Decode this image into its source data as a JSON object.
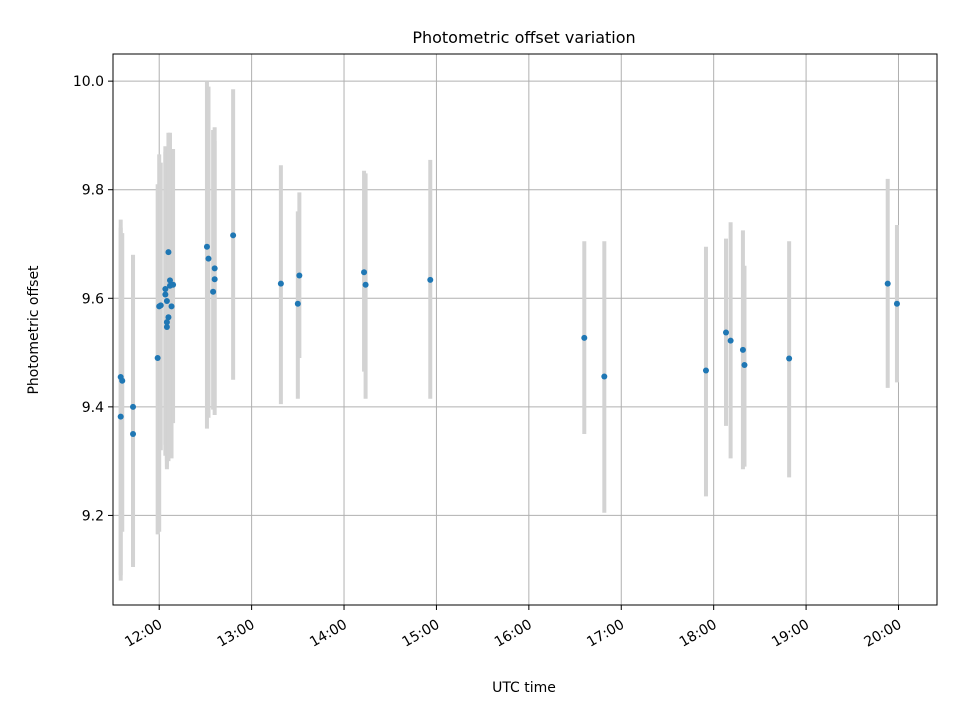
{
  "chart_data": {
    "type": "scatter",
    "title": "Photometric offset variation",
    "xlabel": "UTC time",
    "ylabel": "Photometric offset",
    "x_ticks": [
      "12:00",
      "13:00",
      "14:00",
      "15:00",
      "16:00",
      "17:00",
      "18:00",
      "19:00",
      "20:00"
    ],
    "y_ticks": [
      "9.2",
      "9.4",
      "9.6",
      "9.8",
      "10.0"
    ],
    "y_tick_values": [
      9.2,
      9.4,
      9.6,
      9.8,
      10.0
    ],
    "xlim": [
      "11:30",
      "20:25"
    ],
    "ylim": [
      9.035,
      10.05
    ],
    "grid": true,
    "colors": {
      "marker": "#1f77b4",
      "errorbar": "#d3d3d3",
      "grid": "#b0b0b0"
    },
    "points": [
      {
        "x": "11:35",
        "y": 9.455,
        "lo": 9.08,
        "hi": 9.745
      },
      {
        "x": "11:35",
        "y": 9.382,
        "lo": 9.09,
        "hi": 9.73
      },
      {
        "x": "11:36",
        "y": 9.448,
        "lo": 9.17,
        "hi": 9.72
      },
      {
        "x": "11:43",
        "y": 9.35,
        "lo": 9.105,
        "hi": 9.68
      },
      {
        "x": "11:43",
        "y": 9.4,
        "lo": 9.11,
        "hi": 9.68
      },
      {
        "x": "11:59",
        "y": 9.49,
        "lo": 9.165,
        "hi": 9.81
      },
      {
        "x": "12:00",
        "y": 9.585,
        "lo": 9.17,
        "hi": 9.865
      },
      {
        "x": "12:01",
        "y": 9.587,
        "lo": 9.32,
        "hi": 9.85
      },
      {
        "x": "12:04",
        "y": 9.617,
        "lo": 9.33,
        "hi": 9.88
      },
      {
        "x": "12:04",
        "y": 9.607,
        "lo": 9.31,
        "hi": 9.87
      },
      {
        "x": "12:05",
        "y": 9.595,
        "lo": 9.29,
        "hi": 9.86
      },
      {
        "x": "12:05",
        "y": 9.547,
        "lo": 9.285,
        "hi": 9.85
      },
      {
        "x": "12:05",
        "y": 9.556,
        "lo": 9.3,
        "hi": 9.86
      },
      {
        "x": "12:06",
        "y": 9.685,
        "lo": 9.33,
        "hi": 9.905
      },
      {
        "x": "12:06",
        "y": 9.565,
        "lo": 9.3,
        "hi": 9.87
      },
      {
        "x": "12:07",
        "y": 9.623,
        "lo": 9.32,
        "hi": 9.905
      },
      {
        "x": "12:07",
        "y": 9.633,
        "lo": 9.34,
        "hi": 9.9
      },
      {
        "x": "12:08",
        "y": 9.585,
        "lo": 9.305,
        "hi": 9.87
      },
      {
        "x": "12:09",
        "y": 9.625,
        "lo": 9.37,
        "hi": 9.875
      },
      {
        "x": "12:31",
        "y": 9.695,
        "lo": 9.36,
        "hi": 10.0
      },
      {
        "x": "12:32",
        "y": 9.673,
        "lo": 9.38,
        "hi": 9.99
      },
      {
        "x": "12:35",
        "y": 9.612,
        "lo": 9.395,
        "hi": 9.91
      },
      {
        "x": "12:36",
        "y": 9.655,
        "lo": 9.4,
        "hi": 9.915
      },
      {
        "x": "12:36",
        "y": 9.635,
        "lo": 9.385,
        "hi": 9.89
      },
      {
        "x": "12:48",
        "y": 9.716,
        "lo": 9.45,
        "hi": 9.985
      },
      {
        "x": "13:19",
        "y": 9.627,
        "lo": 9.405,
        "hi": 9.845
      },
      {
        "x": "13:30",
        "y": 9.59,
        "lo": 9.415,
        "hi": 9.76
      },
      {
        "x": "13:31",
        "y": 9.642,
        "lo": 9.49,
        "hi": 9.795
      },
      {
        "x": "14:13",
        "y": 9.648,
        "lo": 9.465,
        "hi": 9.835
      },
      {
        "x": "14:14",
        "y": 9.625,
        "lo": 9.415,
        "hi": 9.83
      },
      {
        "x": "14:56",
        "y": 9.634,
        "lo": 9.415,
        "hi": 9.855
      },
      {
        "x": "16:36",
        "y": 9.527,
        "lo": 9.35,
        "hi": 9.705
      },
      {
        "x": "16:49",
        "y": 9.456,
        "lo": 9.205,
        "hi": 9.705
      },
      {
        "x": "17:55",
        "y": 9.467,
        "lo": 9.235,
        "hi": 9.695
      },
      {
        "x": "18:08",
        "y": 9.537,
        "lo": 9.365,
        "hi": 9.71
      },
      {
        "x": "18:11",
        "y": 9.522,
        "lo": 9.305,
        "hi": 9.74
      },
      {
        "x": "18:19",
        "y": 9.505,
        "lo": 9.285,
        "hi": 9.725
      },
      {
        "x": "18:20",
        "y": 9.477,
        "lo": 9.29,
        "hi": 9.66
      },
      {
        "x": "18:49",
        "y": 9.489,
        "lo": 9.27,
        "hi": 9.705
      },
      {
        "x": "19:53",
        "y": 9.627,
        "lo": 9.435,
        "hi": 9.82
      },
      {
        "x": "19:59",
        "y": 9.59,
        "lo": 9.445,
        "hi": 9.735
      }
    ]
  }
}
